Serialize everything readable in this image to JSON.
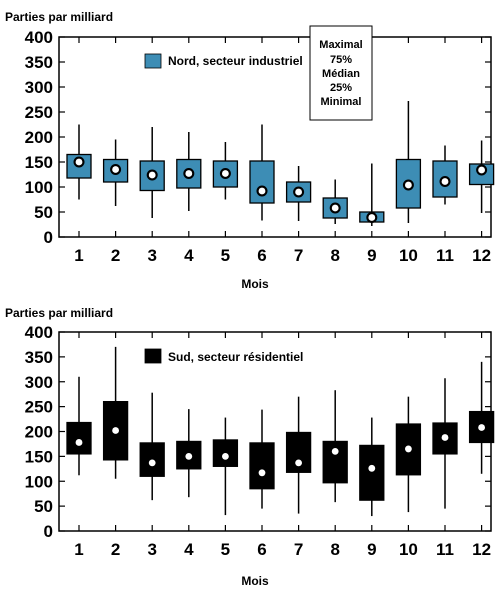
{
  "chart_data": [
    {
      "type": "boxplot",
      "ylabel": "Parties par milliard",
      "xlabel": "Mois",
      "ylim": [
        0,
        400
      ],
      "yticks": [
        "0",
        "50",
        "100",
        "150",
        "200",
        "250",
        "300",
        "350",
        "400"
      ],
      "categories": [
        "1",
        "2",
        "3",
        "4",
        "5",
        "6",
        "7",
        "8",
        "9",
        "10",
        "11",
        "12"
      ],
      "legend": {
        "label": "Nord, secteur industriel",
        "placement": "top-left"
      },
      "box_color": "#3d8db5",
      "key": [
        "Maximal",
        "75%",
        "Médian",
        "25%",
        "Minimal"
      ],
      "series": [
        {
          "name": "Nord, secteur industriel",
          "min": [
            75,
            62,
            38,
            52,
            75,
            33,
            32,
            26,
            22,
            28,
            65,
            48
          ],
          "q1": [
            118,
            110,
            93,
            98,
            100,
            68,
            70,
            38,
            30,
            58,
            80,
            105
          ],
          "median": [
            150,
            135,
            124,
            127,
            127,
            92,
            90,
            58,
            39,
            104,
            111,
            134
          ],
          "q3": [
            165,
            155,
            152,
            155,
            152,
            152,
            110,
            78,
            50,
            155,
            152,
            146
          ],
          "max": [
            225,
            195,
            220,
            210,
            190,
            225,
            142,
            115,
            147,
            272,
            183,
            193
          ]
        }
      ]
    },
    {
      "type": "boxplot",
      "ylabel": "Parties par milliard",
      "xlabel": "Mois",
      "ylim": [
        0,
        400
      ],
      "yticks": [
        "0",
        "50",
        "100",
        "150",
        "200",
        "250",
        "300",
        "350",
        "400"
      ],
      "categories": [
        "1",
        "2",
        "3",
        "4",
        "5",
        "6",
        "7",
        "8",
        "9",
        "10",
        "11",
        "12"
      ],
      "legend": {
        "label": "Sud, secteur résidentiel",
        "placement": "top-left"
      },
      "box_color": "#000000",
      "series": [
        {
          "name": "Sud, secteur résidentiel",
          "min": [
            112,
            105,
            62,
            68,
            32,
            45,
            35,
            58,
            30,
            38,
            45,
            115
          ],
          "q1": [
            155,
            143,
            110,
            125,
            130,
            85,
            118,
            97,
            62,
            113,
            155,
            178
          ],
          "median": [
            178,
            202,
            137,
            150,
            150,
            117,
            137,
            160,
            126,
            165,
            188,
            208
          ],
          "q3": [
            218,
            260,
            177,
            180,
            183,
            177,
            198,
            180,
            172,
            215,
            217,
            240
          ],
          "max": [
            310,
            370,
            278,
            245,
            228,
            244,
            270,
            283,
            228,
            270,
            307,
            340
          ]
        }
      ]
    }
  ]
}
